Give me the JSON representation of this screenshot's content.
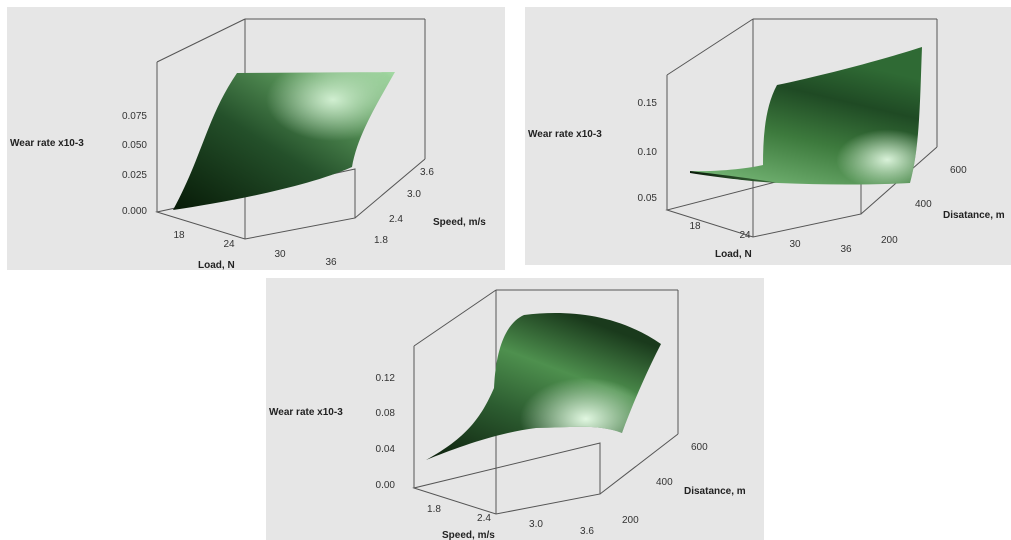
{
  "colors": {
    "panel_bg": "#e6e6e6",
    "surface_dark": "#0d220d",
    "surface_mid": "#3f7a3f",
    "surface_light": "#c8f2c8",
    "frame": "#555555"
  },
  "chart_data": [
    {
      "type": "surface",
      "title": "",
      "xlabel": "Load, N",
      "ylabel": "Speed, m/s",
      "zlabel": "Wear rate x10-3",
      "x_ticks": [
        "18",
        "24",
        "30",
        "36"
      ],
      "y_ticks": [
        "1.8",
        "2.4",
        "3.0",
        "3.6"
      ],
      "z_ticks": [
        "0.000",
        "0.025",
        "0.050",
        "0.075"
      ],
      "xlim": [
        15,
        38
      ],
      "ylim": [
        1.5,
        3.9
      ],
      "zlim": [
        -0.005,
        0.1
      ],
      "surface_corners": [
        {
          "x": 15,
          "y": 1.5,
          "z": 0.0
        },
        {
          "x": 38,
          "y": 1.5,
          "z": 0.02
        },
        {
          "x": 38,
          "y": 3.9,
          "z": 0.088
        },
        {
          "x": 15,
          "y": 3.9,
          "z": 0.09
        }
      ]
    },
    {
      "type": "surface",
      "title": "",
      "xlabel": "Load, N",
      "ylabel": "Disatance, m",
      "zlabel": "Wear rate x10-3",
      "x_ticks": [
        "18",
        "24",
        "30",
        "36"
      ],
      "y_ticks": [
        "200",
        "400",
        "600"
      ],
      "z_ticks": [
        "0.05",
        "0.10",
        "0.15"
      ],
      "xlim": [
        15,
        38
      ],
      "ylim": [
        150,
        650
      ],
      "zlim": [
        0.03,
        0.19
      ],
      "surface_corners": [
        {
          "x": 15,
          "y": 150,
          "z": 0.085
        },
        {
          "x": 38,
          "y": 150,
          "z": 0.078
        },
        {
          "x": 38,
          "y": 650,
          "z": 0.18
        },
        {
          "x": 15,
          "y": 650,
          "z": 0.16
        }
      ]
    },
    {
      "type": "surface",
      "title": "",
      "xlabel": "Speed, m/s",
      "ylabel": "Disatance, m",
      "zlabel": "Wear rate x10-3",
      "x_ticks": [
        "1.8",
        "2.4",
        "3.0",
        "3.6"
      ],
      "y_ticks": [
        "200",
        "400",
        "600"
      ],
      "z_ticks": [
        "0.00",
        "0.04",
        "0.08",
        "0.12"
      ],
      "xlim": [
        1.5,
        3.9
      ],
      "ylim": [
        150,
        650
      ],
      "zlim": [
        -0.01,
        0.16
      ],
      "surface_corners": [
        {
          "x": 1.5,
          "y": 150,
          "z": 0.01
        },
        {
          "x": 3.9,
          "y": 150,
          "z": 0.065
        },
        {
          "x": 3.9,
          "y": 650,
          "z": 0.13
        },
        {
          "x": 1.5,
          "y": 650,
          "z": 0.145
        }
      ]
    }
  ]
}
